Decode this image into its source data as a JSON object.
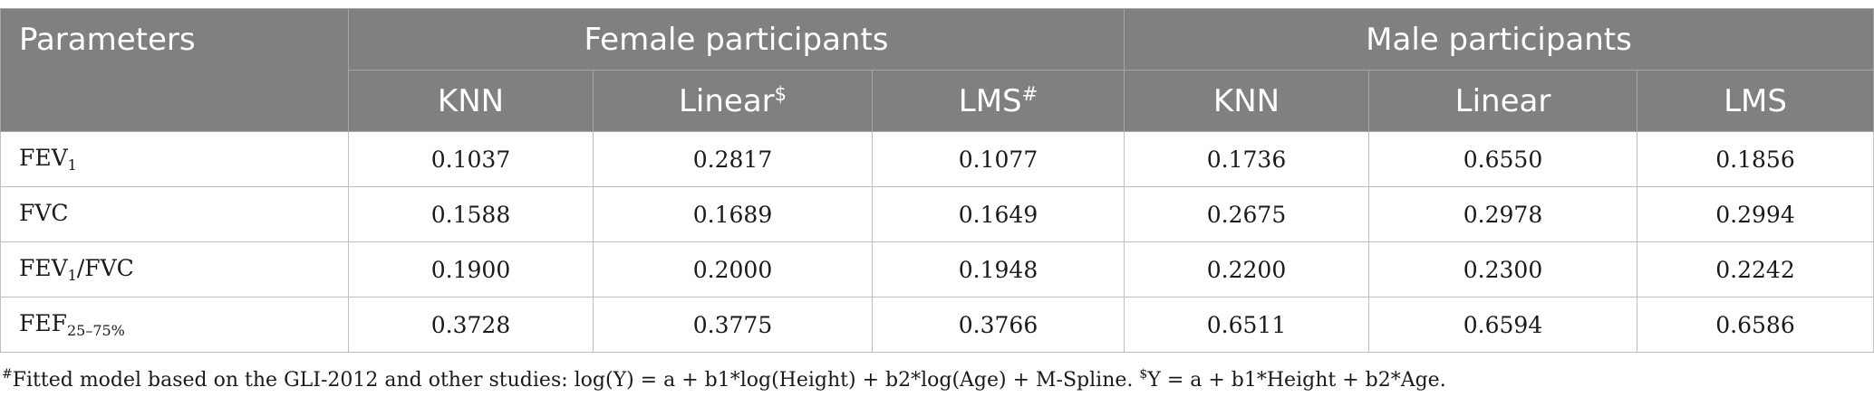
{
  "table": {
    "headers": {
      "parameters": "Parameters",
      "female_group": "Female participants",
      "male_group": "Male participants",
      "female_cols": [
        {
          "label": "KNN",
          "mark": ""
        },
        {
          "label": "Linear",
          "mark": "$"
        },
        {
          "label": "LMS",
          "mark": "#"
        }
      ],
      "male_cols": [
        {
          "label": "KNN",
          "mark": ""
        },
        {
          "label": "Linear",
          "mark": ""
        },
        {
          "label": "LMS",
          "mark": ""
        }
      ]
    },
    "rows": [
      {
        "label_parts": [
          "FEV",
          "1",
          ""
        ],
        "values": [
          "0.1037",
          "0.2817",
          "0.1077",
          "0.1736",
          "0.6550",
          "0.1856"
        ]
      },
      {
        "label_parts": [
          "FVC",
          "",
          ""
        ],
        "values": [
          "0.1588",
          "0.1689",
          "0.1649",
          "0.2675",
          "0.2978",
          "0.2994"
        ]
      },
      {
        "label_parts": [
          "FEV",
          "1",
          "/FVC"
        ],
        "values": [
          "0.1900",
          "0.2000",
          "0.1948",
          "0.2200",
          "0.2300",
          "0.2242"
        ]
      },
      {
        "label_parts": [
          "FEF",
          "25–75%",
          ""
        ],
        "values": [
          "0.3728",
          "0.3775",
          "0.3766",
          "0.6511",
          "0.6594",
          "0.6586"
        ]
      }
    ]
  },
  "footnote": {
    "mark1": "#",
    "text1": "Fitted model based on the GLI-2012 and other studies: log(Y) = a + b1*log(Height) + b2*log(Age) + M-Spline. ",
    "mark2": "$",
    "text2": "Y = a + b1*Height + b2*Age."
  }
}
